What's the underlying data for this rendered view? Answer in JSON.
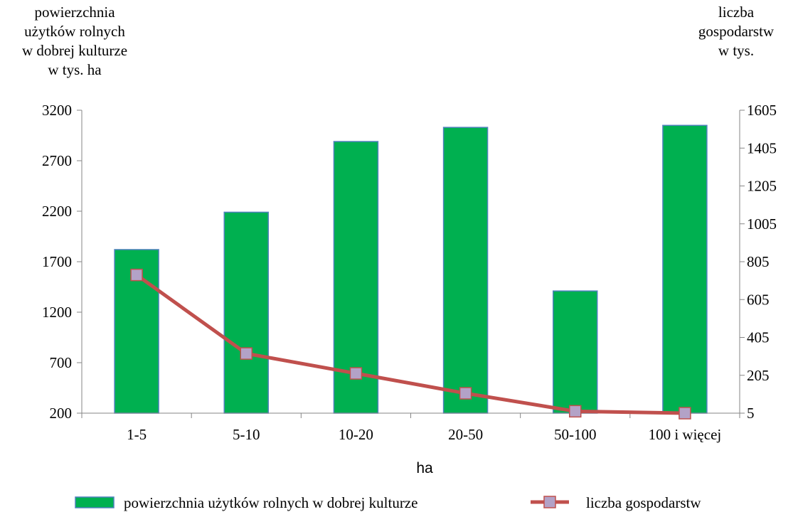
{
  "chart_data": {
    "type": "bar",
    "categories": [
      "1-5",
      "5-10",
      "10-20",
      "20-50",
      "50-100",
      "100 i więcej"
    ],
    "xlabel": "ha",
    "ylabel_left": [
      "powierzchnia",
      "użytków rolnych",
      "w dobrej kulturze",
      "w tys. ha"
    ],
    "ylabel_right": [
      "liczba",
      "gospodarstw",
      "w tys."
    ],
    "y_left": {
      "min": 200,
      "max": 3200,
      "ticks": [
        200,
        700,
        1200,
        1700,
        2200,
        2700,
        3200
      ]
    },
    "y_right": {
      "min": 5,
      "max": 1605,
      "ticks": [
        5,
        205,
        405,
        605,
        805,
        1005,
        1205,
        1405,
        1605
      ]
    },
    "series": [
      {
        "name": "powierzchnia użytków rolnych w dobrej kulturze",
        "kind": "bar",
        "axis": "left",
        "color": "#00b050",
        "edge_color": "#4f81bd",
        "values": [
          1820,
          2190,
          2890,
          3030,
          1410,
          3050
        ]
      },
      {
        "name": "liczba gospodarstw",
        "kind": "line",
        "axis": "right",
        "color": "#c0504d",
        "marker_fill": "#b3a2c7",
        "values": [
          735,
          320,
          215,
          110,
          15,
          5
        ]
      }
    ],
    "legend_position": "bottom",
    "grid": false
  }
}
